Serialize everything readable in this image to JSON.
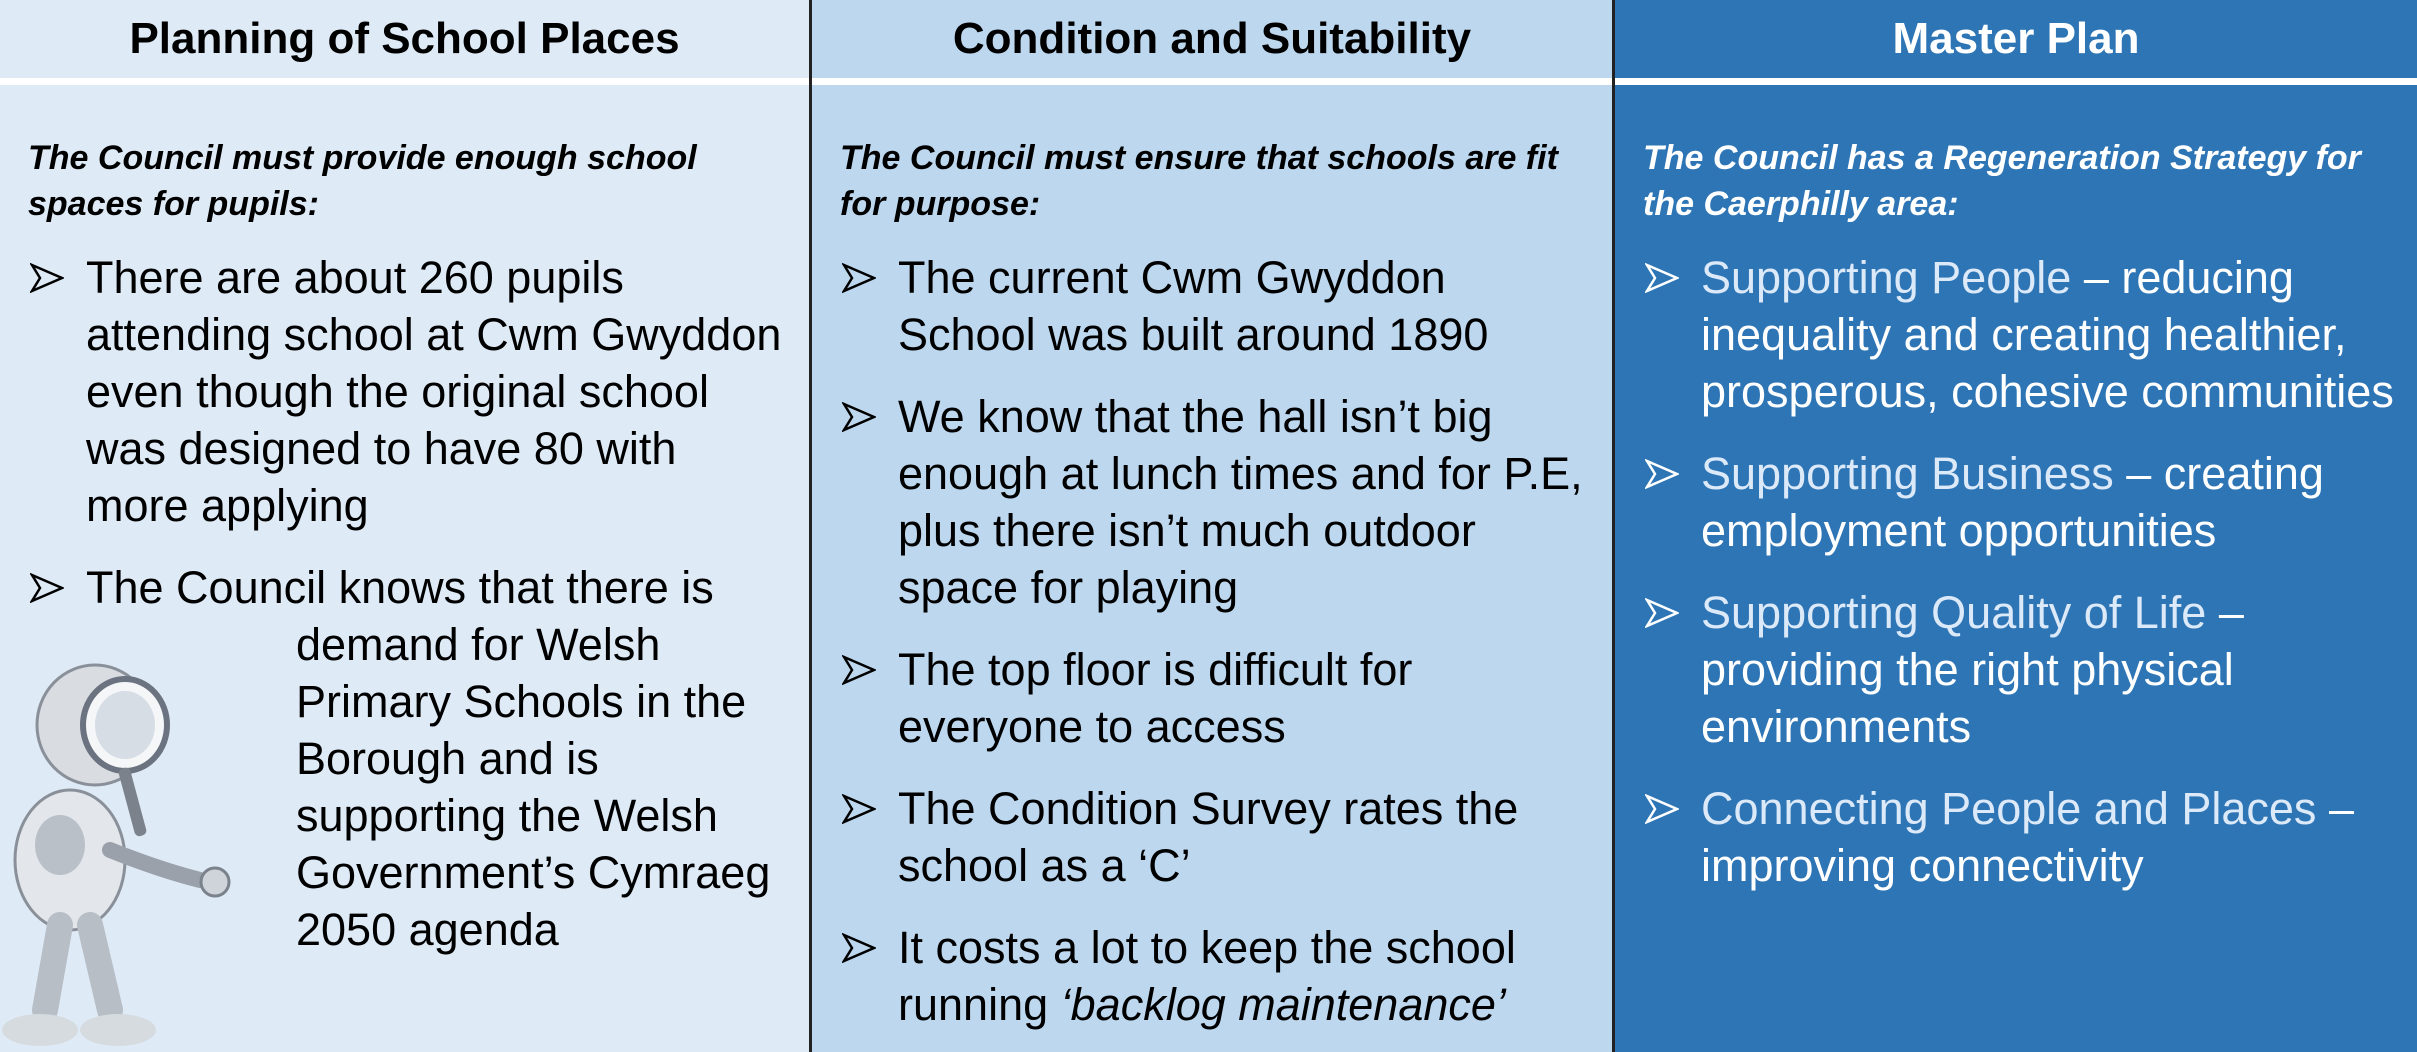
{
  "columns": [
    {
      "title": "Planning of School Places",
      "intro": "The Council must provide enough school spaces for pupils:",
      "bullets": [
        {
          "text": "There are about 260 pupils attending school at Cwm Gwyddon even though the original school was designed to have 80 with more applying"
        },
        {
          "text": "The Council knows that there is demand for Welsh Primary Schools in the Borough and is supporting the Welsh Government’s Cymraeg 2050 agenda"
        }
      ]
    },
    {
      "title": "Condition and Suitability",
      "intro": "The Council must ensure that schools are fit for purpose:",
      "bullets": [
        {
          "text": "The current Cwm Gwyddon School was built around 1890"
        },
        {
          "text": "We know that the hall isn’t big enough at lunch times and for P.E, plus there isn’t much outdoor space for playing"
        },
        {
          "text": "The top floor is difficult for everyone to access"
        },
        {
          "text": "The Condition Survey rates the school as a ‘C’"
        },
        {
          "text": "It costs a lot to keep the school running",
          "emphasis": "‘backlog maintenance’"
        }
      ]
    },
    {
      "title": "Master Plan",
      "intro": "The Council has a Regeneration Strategy for the Caerphilly area:",
      "bullets": [
        {
          "label": "Supporting People",
          "text": "– reducing inequality and creating healthier, prosperous, cohesive communities"
        },
        {
          "label": "Supporting Business",
          "text": "– creating employment opportunities"
        },
        {
          "label": "Supporting Quality of Life",
          "text": "– providing the right physical environments"
        },
        {
          "label": "Connecting People and Places",
          "text": "– improving connectivity"
        }
      ]
    }
  ]
}
